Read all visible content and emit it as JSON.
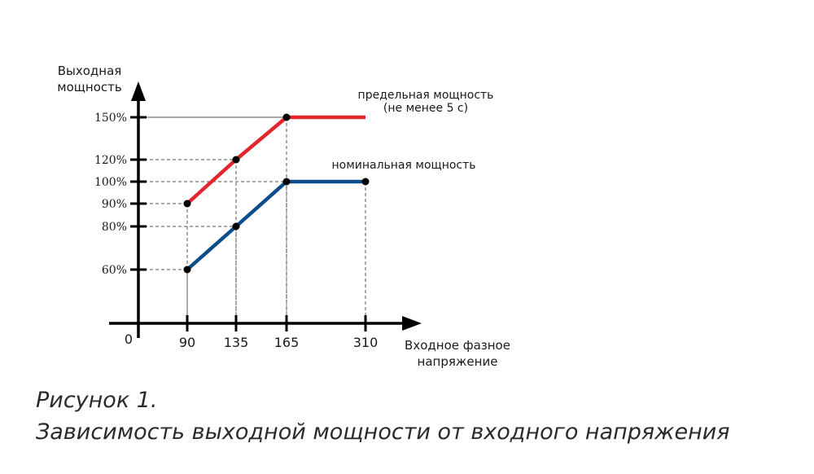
{
  "chart_data": {
    "type": "line",
    "title": "",
    "ylabel_lines": [
      "Выходная",
      "мощность"
    ],
    "xlabel_lines": [
      "Входное фазное",
      "напряжение"
    ],
    "origin_label": "0",
    "x_ticks": [
      {
        "value": 90,
        "label": "90"
      },
      {
        "value": 135,
        "label": "135"
      },
      {
        "value": 165,
        "label": "165"
      },
      {
        "value": 310,
        "label": "310"
      }
    ],
    "y_ticks": [
      {
        "value": 60,
        "label": "60%"
      },
      {
        "value": 80,
        "label": "80%"
      },
      {
        "value": 90,
        "label": "90%"
      },
      {
        "value": 100,
        "label": "100%"
      },
      {
        "value": 120,
        "label": "120%"
      },
      {
        "value": 150,
        "label": "150%"
      }
    ],
    "series": [
      {
        "name_lines": [
          "предельная мощность",
          "(не  менее 5 с)"
        ],
        "color": "#e3252d",
        "points": [
          {
            "x": 90,
            "y": 90
          },
          {
            "x": 135,
            "y": 120
          },
          {
            "x": 165,
            "y": 150
          },
          {
            "x": 310,
            "y": 150
          }
        ],
        "markers": [
          true,
          true,
          true,
          false
        ]
      },
      {
        "name_lines": [
          "номинальная мощность"
        ],
        "color": "#0d4d8a",
        "points": [
          {
            "x": 90,
            "y": 60
          },
          {
            "x": 135,
            "y": 80
          },
          {
            "x": 165,
            "y": 100
          },
          {
            "x": 310,
            "y": 100
          }
        ],
        "markers": [
          true,
          true,
          true,
          true
        ]
      }
    ],
    "grid": "dashed guide lines from each point to the axes",
    "axis_color": "#000000"
  },
  "caption": {
    "line1": "Рисунок 1.",
    "line2": "Зависимость выходной мощности от входного напряжения"
  }
}
